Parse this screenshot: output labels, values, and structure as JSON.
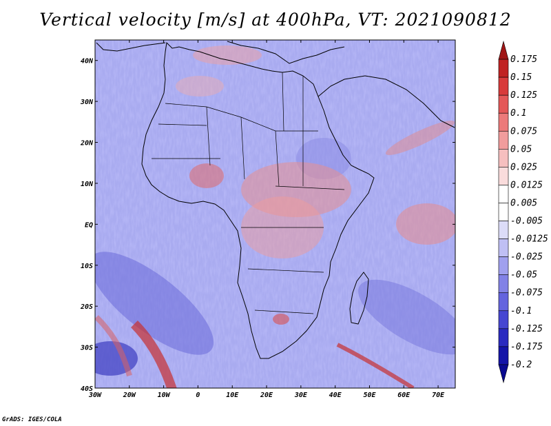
{
  "title": "Vertical velocity [m/s] at 400hPa, VT: 2021090812",
  "credit": "GrADS: IGES/COLA",
  "map": {
    "region": "Africa",
    "variable": "vertical velocity",
    "level": "400hPa",
    "lon_range": [
      -30,
      75
    ],
    "lat_range": [
      -40,
      45
    ],
    "lon_ticks": [
      {
        "value": -30,
        "label": "30W"
      },
      {
        "value": -20,
        "label": "20W"
      },
      {
        "value": -10,
        "label": "10W"
      },
      {
        "value": 0,
        "label": "0"
      },
      {
        "value": 10,
        "label": "10E"
      },
      {
        "value": 20,
        "label": "20E"
      },
      {
        "value": 30,
        "label": "30E"
      },
      {
        "value": 40,
        "label": "40E"
      },
      {
        "value": 50,
        "label": "50E"
      },
      {
        "value": 60,
        "label": "60E"
      },
      {
        "value": 70,
        "label": "70E"
      }
    ],
    "lat_ticks": [
      {
        "value": 40,
        "label": "40N"
      },
      {
        "value": 30,
        "label": "30N"
      },
      {
        "value": 20,
        "label": "20N"
      },
      {
        "value": 10,
        "label": "10N"
      },
      {
        "value": 0,
        "label": "EQ"
      },
      {
        "value": -10,
        "label": "10S"
      },
      {
        "value": -20,
        "label": "20S"
      },
      {
        "value": -30,
        "label": "30S"
      },
      {
        "value": -40,
        "label": "40S"
      }
    ]
  },
  "colorbar": {
    "levels": [
      "0.175",
      "0.15",
      "0.125",
      "0.1",
      "0.075",
      "0.05",
      "0.025",
      "0.0125",
      "0.005",
      "-0.005",
      "-0.0125",
      "-0.025",
      "-0.05",
      "-0.075",
      "-0.1",
      "-0.125",
      "-0.175",
      "-0.2"
    ],
    "colors": [
      "#a01616",
      "#c02222",
      "#d83a3a",
      "#e45858",
      "#ec7a7a",
      "#f19c9c",
      "#f6bfbf",
      "#fadcdc",
      "#ffffff",
      "#ffffff",
      "#dcdcf8",
      "#bfbff4",
      "#a0a0ee",
      "#8282e6",
      "#6464de",
      "#4646d2",
      "#2a2ac0",
      "#1414a8",
      "#0a0a90"
    ]
  }
}
